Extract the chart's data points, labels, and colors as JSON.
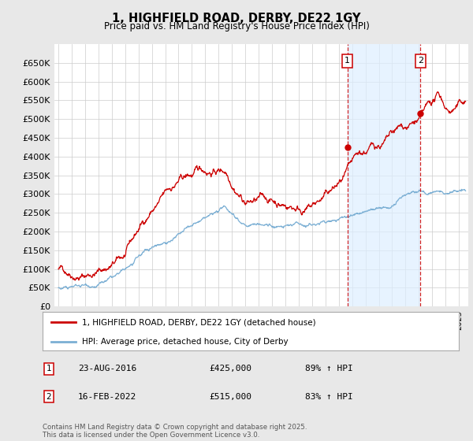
{
  "title": "1, HIGHFIELD ROAD, DERBY, DE22 1GY",
  "subtitle": "Price paid vs. HM Land Registry's House Price Index (HPI)",
  "red_label": "1, HIGHFIELD ROAD, DERBY, DE22 1GY (detached house)",
  "blue_label": "HPI: Average price, detached house, City of Derby",
  "footnote": "Contains HM Land Registry data © Crown copyright and database right 2025.\nThis data is licensed under the Open Government Licence v3.0.",
  "sale1_date": "23-AUG-2016",
  "sale1_price": "£425,000",
  "sale1_hpi": "89% ↑ HPI",
  "sale2_date": "16-FEB-2022",
  "sale2_price": "£515,000",
  "sale2_hpi": "83% ↑ HPI",
  "ylim": [
    0,
    700000
  ],
  "yticks": [
    0,
    50000,
    100000,
    150000,
    200000,
    250000,
    300000,
    350000,
    400000,
    450000,
    500000,
    550000,
    600000,
    650000
  ],
  "sale1_year": 2016.65,
  "sale2_year": 2022.12,
  "sale1_value": 425000,
  "sale2_value": 515000,
  "red_color": "#cc0000",
  "blue_color": "#7bafd4",
  "shade_color": "#ddeeff",
  "vline_color": "#cc0000",
  "bg_color": "#e8e8e8",
  "plot_bg": "#ffffff",
  "grid_color": "#cccccc",
  "xlim_left": 1994.7,
  "xlim_right": 2025.7
}
